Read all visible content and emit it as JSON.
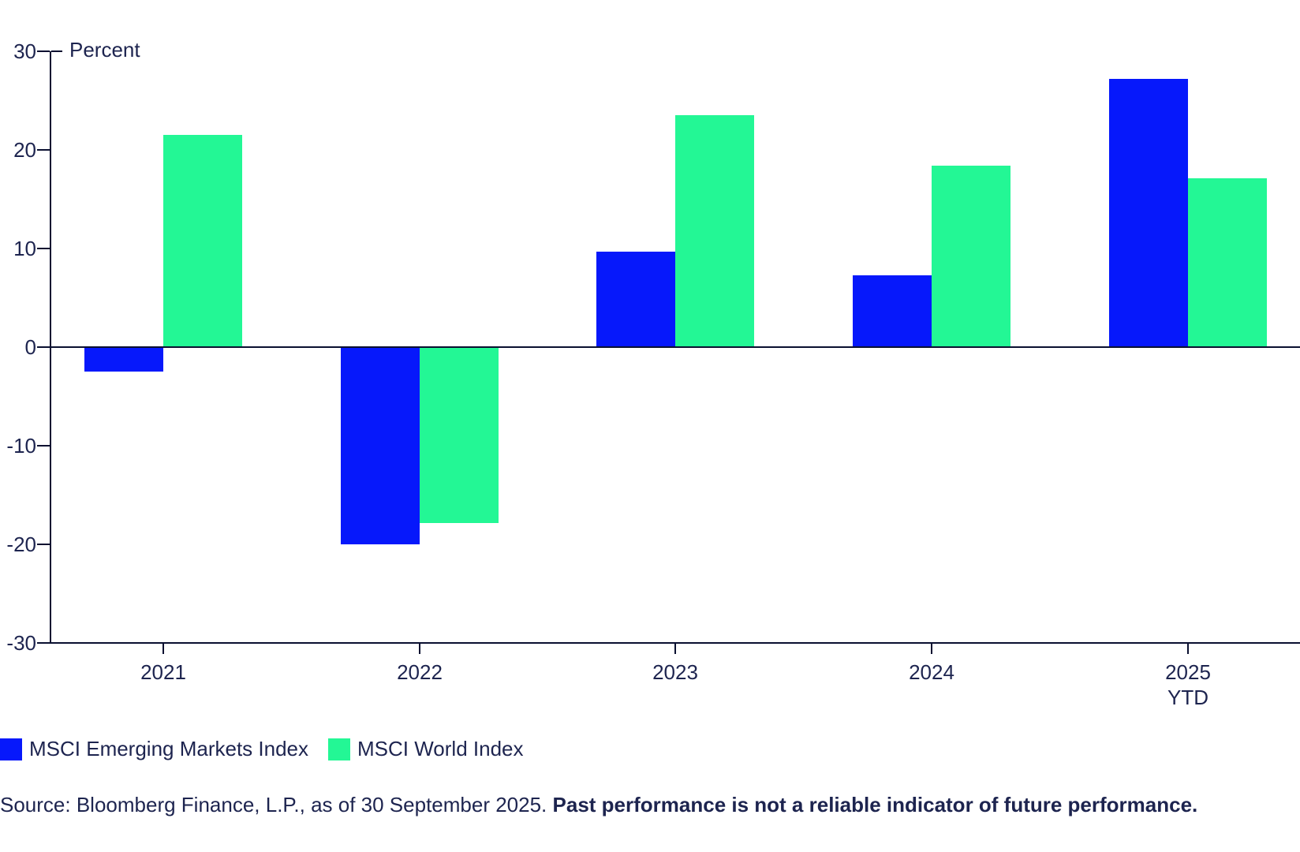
{
  "chart_data": {
    "type": "bar",
    "title": "",
    "unit_label": "Percent",
    "categories": [
      {
        "label": "2021",
        "sublabel": ""
      },
      {
        "label": "2022",
        "sublabel": ""
      },
      {
        "label": "2023",
        "sublabel": ""
      },
      {
        "label": "2024",
        "sublabel": ""
      },
      {
        "label": "2025",
        "sublabel": "YTD"
      }
    ],
    "series": [
      {
        "name": "MSCI Emerging Markets Index",
        "color": "#0618fb",
        "values": [
          -2.5,
          -20.0,
          9.7,
          7.3,
          27.2
        ]
      },
      {
        "name": "MSCI World Index",
        "color": "#23f795",
        "values": [
          21.5,
          -17.8,
          23.5,
          18.4,
          17.1
        ]
      }
    ],
    "ylabel": "",
    "xlabel": "",
    "ylim": [
      -30,
      30
    ],
    "yticks": [
      30,
      20,
      10,
      0,
      -10,
      -20,
      -30
    ],
    "grid": false,
    "legend_position": "bottom-left",
    "colors": {
      "axis": "#0a1030",
      "text": "#1d244f",
      "background": "#ffffff"
    }
  },
  "source": {
    "normal": "Source: Bloomberg Finance, L.P., as of 30 September 2025. ",
    "bold": "Past performance is not a reliable indicator of future performance."
  }
}
